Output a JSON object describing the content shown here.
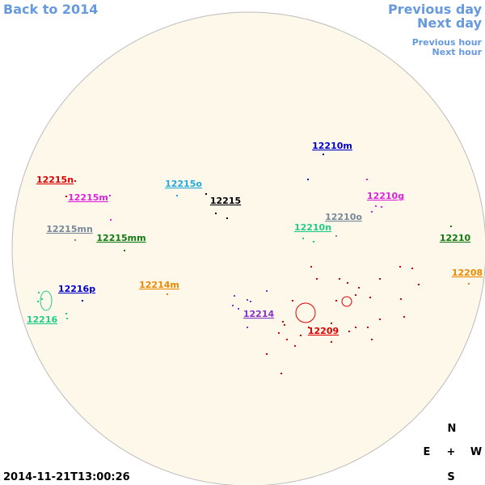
{
  "nav": {
    "back": "Back to 2014",
    "previous_day": "Previous day",
    "next_day": "Next day",
    "previous_hour": "Previous hour",
    "next_hour": "Next hour"
  },
  "regions": [
    {
      "label": "12210m",
      "color": "#0000cc"
    },
    {
      "label": "12215n",
      "color": "#dd0000"
    },
    {
      "label": "12215o",
      "color": "#22aadd"
    },
    {
      "label": "12215m",
      "color": "#dd22dd"
    },
    {
      "label": "12215",
      "color": "#000000"
    },
    {
      "label": "12210g",
      "color": "#dd22dd"
    },
    {
      "label": "12210o",
      "color": "#778899"
    },
    {
      "label": "12210n",
      "color": "#22cc88"
    },
    {
      "label": "12215mn",
      "color": "#778899"
    },
    {
      "label": "12215mm",
      "color": "#117711"
    },
    {
      "label": "12210",
      "color": "#117711"
    },
    {
      "label": "12208",
      "color": "#ee8800"
    },
    {
      "label": "12216p",
      "color": "#0000cc"
    },
    {
      "label": "12214m",
      "color": "#ee8800"
    },
    {
      "label": "12216",
      "color": "#22cc88"
    },
    {
      "label": "12214",
      "color": "#8833cc"
    },
    {
      "label": "12209",
      "color": "#dd0000"
    }
  ],
  "compass": {
    "north": "N",
    "east": "E",
    "center": "+",
    "west": "W",
    "south": "S"
  },
  "timestamp": "2014-11-21T13:00:26"
}
